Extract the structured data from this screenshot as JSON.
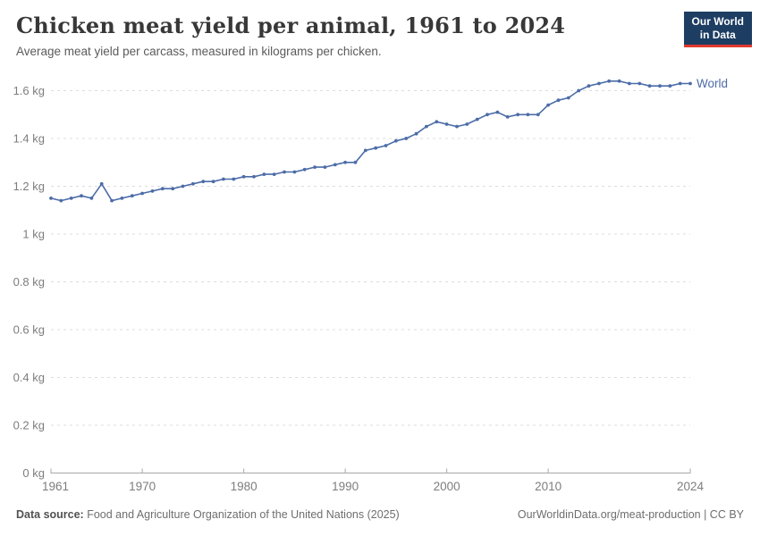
{
  "header": {
    "title": "Chicken meat yield per animal, 1961 to 2024",
    "subtitle": "Average meat yield per carcass, measured in kilograms per chicken."
  },
  "logo": {
    "line1": "Our World",
    "line2": "in Data",
    "bg_color": "#1d3d63",
    "accent_color": "#e0392f"
  },
  "footer": {
    "source_label": "Data source:",
    "source_text": " Food and Agriculture Organization of the United Nations (2025)",
    "link_text": "OurWorldinData.org/meat-production | CC BY"
  },
  "chart_data": {
    "type": "line",
    "title": "Chicken meat yield per animal, 1961 to 2024",
    "xlabel": "",
    "ylabel": "",
    "ylim": [
      0,
      1.6
    ],
    "grid": "horizontal-dashed",
    "legend_position": "end-of-line",
    "line_color": "#4c6ca8",
    "axis_color": "#a8a8a8",
    "grid_color": "#dcdcdc",
    "tick_label_color": "#7d7d7d",
    "yticks": [
      {
        "value": 0,
        "label": "0 kg"
      },
      {
        "value": 0.2,
        "label": "0.2 kg"
      },
      {
        "value": 0.4,
        "label": "0.4 kg"
      },
      {
        "value": 0.6,
        "label": "0.6 kg"
      },
      {
        "value": 0.8,
        "label": "0.8 kg"
      },
      {
        "value": 1.0,
        "label": "1 kg"
      },
      {
        "value": 1.2,
        "label": "1.2 kg"
      },
      {
        "value": 1.4,
        "label": "1.4 kg"
      },
      {
        "value": 1.6,
        "label": "1.6 kg"
      }
    ],
    "xticks": [
      {
        "value": 1961,
        "label": "1961"
      },
      {
        "value": 1970,
        "label": "1970"
      },
      {
        "value": 1980,
        "label": "1980"
      },
      {
        "value": 1990,
        "label": "1990"
      },
      {
        "value": 2000,
        "label": "2000"
      },
      {
        "value": 2010,
        "label": "2010"
      },
      {
        "value": 2024,
        "label": "2024"
      }
    ],
    "x": [
      1961,
      1962,
      1963,
      1964,
      1965,
      1966,
      1967,
      1968,
      1969,
      1970,
      1971,
      1972,
      1973,
      1974,
      1975,
      1976,
      1977,
      1978,
      1979,
      1980,
      1981,
      1982,
      1983,
      1984,
      1985,
      1986,
      1987,
      1988,
      1989,
      1990,
      1991,
      1992,
      1993,
      1994,
      1995,
      1996,
      1997,
      1998,
      1999,
      2000,
      2001,
      2002,
      2003,
      2004,
      2005,
      2006,
      2007,
      2008,
      2009,
      2010,
      2011,
      2012,
      2013,
      2014,
      2015,
      2016,
      2017,
      2018,
      2019,
      2020,
      2021,
      2022,
      2023,
      2024
    ],
    "series": [
      {
        "name": "World",
        "color": "#4c6ca8",
        "values": [
          1.15,
          1.14,
          1.15,
          1.16,
          1.15,
          1.21,
          1.14,
          1.15,
          1.16,
          1.17,
          1.18,
          1.19,
          1.19,
          1.2,
          1.21,
          1.22,
          1.22,
          1.23,
          1.23,
          1.24,
          1.24,
          1.25,
          1.25,
          1.26,
          1.26,
          1.27,
          1.28,
          1.28,
          1.29,
          1.3,
          1.3,
          1.35,
          1.36,
          1.37,
          1.39,
          1.4,
          1.42,
          1.45,
          1.47,
          1.46,
          1.45,
          1.46,
          1.48,
          1.5,
          1.51,
          1.49,
          1.5,
          1.5,
          1.5,
          1.54,
          1.56,
          1.57,
          1.6,
          1.62,
          1.63,
          1.64,
          1.64,
          1.63,
          1.63,
          1.62,
          1.62,
          1.62,
          1.63,
          1.63
        ]
      }
    ]
  }
}
